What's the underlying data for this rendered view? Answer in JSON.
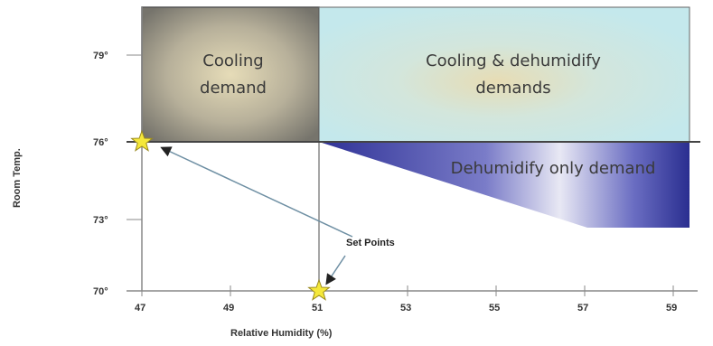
{
  "axes": {
    "x_title": "Relative Humidity (%)",
    "y_title": "Room Temp.",
    "x_ticks": [
      "47",
      "49",
      "51",
      "53",
      "55",
      "57",
      "59"
    ],
    "y_ticks": [
      "79°",
      "76°",
      "73°",
      "70°"
    ]
  },
  "regions": {
    "cooling": [
      "Cooling",
      "demand"
    ],
    "cooling_dehumidify": [
      "Cooling & dehumidify",
      "demands"
    ],
    "dehumidify_only": "Dehumidify only demand"
  },
  "callout": "Set Points",
  "colors": {
    "cooling": "#8e8c84",
    "cooling_center": "#e2d6b0",
    "cooling_dehumidify": "#c9e9ea",
    "dehumidify": "#3b3fa8",
    "star": "#f5e83a"
  },
  "set_points": [
    {
      "rh": 47,
      "temp": 76
    },
    {
      "rh": 51,
      "temp": 70
    }
  ]
}
